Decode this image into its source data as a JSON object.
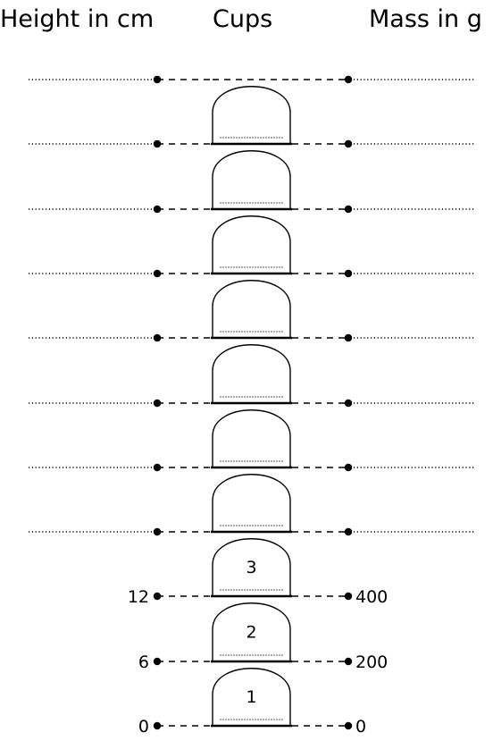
{
  "headers": {
    "left": "Height in cm",
    "middle": "Cups",
    "right": "Mass in g"
  },
  "cups": [
    {
      "label": "1"
    },
    {
      "label": "2"
    },
    {
      "label": "3"
    },
    {
      "label": ""
    },
    {
      "label": ""
    },
    {
      "label": ""
    },
    {
      "label": ""
    },
    {
      "label": ""
    },
    {
      "label": ""
    },
    {
      "label": ""
    }
  ],
  "height_labels": [
    "0",
    "6",
    "12",
    "",
    "",
    "",
    "",
    "",
    "",
    "",
    ""
  ],
  "mass_labels": [
    "0",
    "200",
    "400",
    "",
    "",
    "",
    "",
    "",
    "",
    "",
    ""
  ],
  "colors": {
    "ink": "#000000",
    "background": "#ffffff"
  }
}
